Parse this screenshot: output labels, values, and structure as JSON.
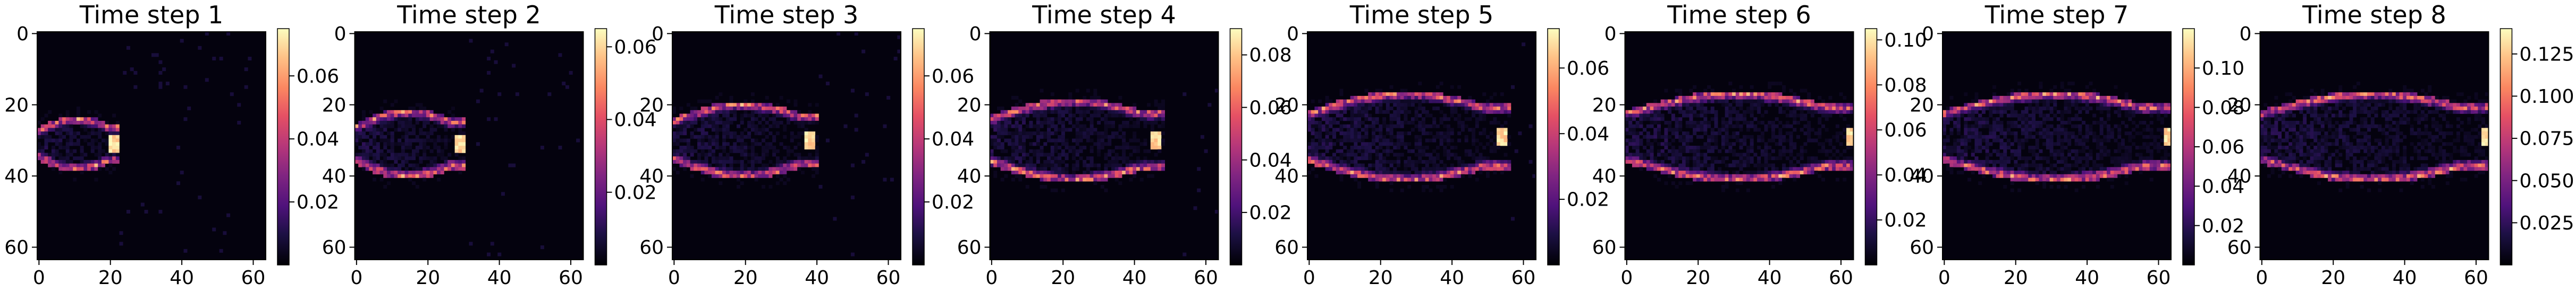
{
  "chart_data": [
    {
      "type": "heatmap",
      "title": "Time step 1",
      "xlabel": "",
      "ylabel": "",
      "x_ticks": [
        0,
        20,
        40,
        60
      ],
      "y_ticks": [
        0,
        20,
        40,
        60
      ],
      "xlim": [
        0,
        64
      ],
      "ylim": [
        64,
        0
      ],
      "colorbar": {
        "ticks": [
          "0.02",
          "0.04",
          "0.06"
        ],
        "min": 0.0,
        "max": 0.075
      },
      "colormap": "magma",
      "grid_size": [
        64,
        64
      ],
      "plume": {
        "x_start": 0,
        "x_end": 22,
        "y_center": 31,
        "half_width": 7,
        "x_tip": 21,
        "peak": 0.07
      }
    },
    {
      "type": "heatmap",
      "title": "Time step 2",
      "xlabel": "",
      "ylabel": "",
      "x_ticks": [
        0,
        20,
        40,
        60
      ],
      "y_ticks": [
        0,
        20,
        40,
        60
      ],
      "xlim": [
        0,
        64
      ],
      "ylim": [
        64,
        0
      ],
      "colorbar": {
        "ticks": [
          "0.02",
          "0.04",
          "0.06"
        ],
        "min": 0.0,
        "max": 0.065
      },
      "colormap": "magma",
      "grid_size": [
        64,
        64
      ],
      "plume": {
        "x_start": 0,
        "x_end": 30,
        "y_center": 31,
        "half_width": 9,
        "x_tip": 29,
        "peak": 0.058
      }
    },
    {
      "type": "heatmap",
      "title": "Time step 3",
      "xlabel": "",
      "ylabel": "",
      "x_ticks": [
        0,
        20,
        40,
        60
      ],
      "y_ticks": [
        0,
        20,
        40,
        60
      ],
      "xlim": [
        0,
        64
      ],
      "ylim": [
        64,
        0
      ],
      "colorbar": {
        "ticks": [
          "0.02",
          "0.04",
          "0.06"
        ],
        "min": 0.0,
        "max": 0.075
      },
      "colormap": "magma",
      "grid_size": [
        64,
        64
      ],
      "plume": {
        "x_start": 0,
        "x_end": 40,
        "y_center": 30,
        "half_width": 10,
        "x_tip": 38,
        "peak": 0.07
      }
    },
    {
      "type": "heatmap",
      "title": "Time step 4",
      "xlabel": "",
      "ylabel": "",
      "x_ticks": [
        0,
        20,
        40,
        60
      ],
      "y_ticks": [
        0,
        20,
        40,
        60
      ],
      "xlim": [
        0,
        64
      ],
      "ylim": [
        64,
        0
      ],
      "colorbar": {
        "ticks": [
          "0.02",
          "0.04",
          "0.06",
          "0.08"
        ],
        "min": 0.0,
        "max": 0.09
      },
      "colormap": "magma",
      "grid_size": [
        64,
        64
      ],
      "plume": {
        "x_start": 0,
        "x_end": 48,
        "y_center": 30,
        "half_width": 11,
        "x_tip": 46,
        "peak": 0.085
      }
    },
    {
      "type": "heatmap",
      "title": "Time step 5",
      "xlabel": "",
      "ylabel": "",
      "x_ticks": [
        0,
        20,
        40,
        60
      ],
      "y_ticks": [
        0,
        20,
        40,
        60
      ],
      "xlim": [
        0,
        64
      ],
      "ylim": [
        64,
        0
      ],
      "colorbar": {
        "ticks": [
          "0.02",
          "0.04",
          "0.06"
        ],
        "min": 0.0,
        "max": 0.072
      },
      "colormap": "magma",
      "grid_size": [
        64,
        64
      ],
      "plume": {
        "x_start": 0,
        "x_end": 56,
        "y_center": 29,
        "half_width": 12,
        "x_tip": 54,
        "peak": 0.07
      }
    },
    {
      "type": "heatmap",
      "title": "Time step 6",
      "xlabel": "",
      "ylabel": "",
      "x_ticks": [
        0,
        20,
        40,
        60
      ],
      "y_ticks": [
        0,
        20,
        40,
        60
      ],
      "xlim": [
        0,
        64
      ],
      "ylim": [
        64,
        0
      ],
      "colorbar": {
        "ticks": [
          "0.02",
          "0.04",
          "0.06",
          "0.08",
          "0.10"
        ],
        "min": 0.0,
        "max": 0.105
      },
      "colormap": "magma",
      "grid_size": [
        64,
        64
      ],
      "plume": {
        "x_start": 0,
        "x_end": 64,
        "y_center": 29,
        "half_width": 12,
        "x_tip": 63,
        "peak": 0.1
      }
    },
    {
      "type": "heatmap",
      "title": "Time step 7",
      "xlabel": "",
      "ylabel": "",
      "x_ticks": [
        0,
        20,
        40,
        60
      ],
      "y_ticks": [
        0,
        20,
        40,
        60
      ],
      "xlim": [
        0,
        64
      ],
      "ylim": [
        64,
        0
      ],
      "colorbar": {
        "ticks": [
          "0.02",
          "0.04",
          "0.06",
          "0.08",
          "0.10"
        ],
        "min": 0.0,
        "max": 0.12
      },
      "colormap": "magma",
      "grid_size": [
        64,
        64
      ],
      "plume": {
        "x_start": 0,
        "x_end": 64,
        "y_center": 29,
        "half_width": 12,
        "x_tip": 63,
        "peak": 0.115
      }
    },
    {
      "type": "heatmap",
      "title": "Time step 8",
      "xlabel": "",
      "ylabel": "",
      "x_ticks": [
        0,
        20,
        40,
        60
      ],
      "y_ticks": [
        0,
        20,
        40,
        60
      ],
      "xlim": [
        0,
        64
      ],
      "ylim": [
        64,
        0
      ],
      "colorbar": {
        "ticks": [
          "0.025",
          "0.050",
          "0.075",
          "0.100",
          "0.125"
        ],
        "min": 0.0,
        "max": 0.14
      },
      "colormap": "magma",
      "grid_size": [
        64,
        64
      ],
      "plume": {
        "x_start": 0,
        "x_end": 64,
        "y_center": 29,
        "half_width": 12,
        "x_tip": 63,
        "peak": 0.135
      }
    }
  ]
}
